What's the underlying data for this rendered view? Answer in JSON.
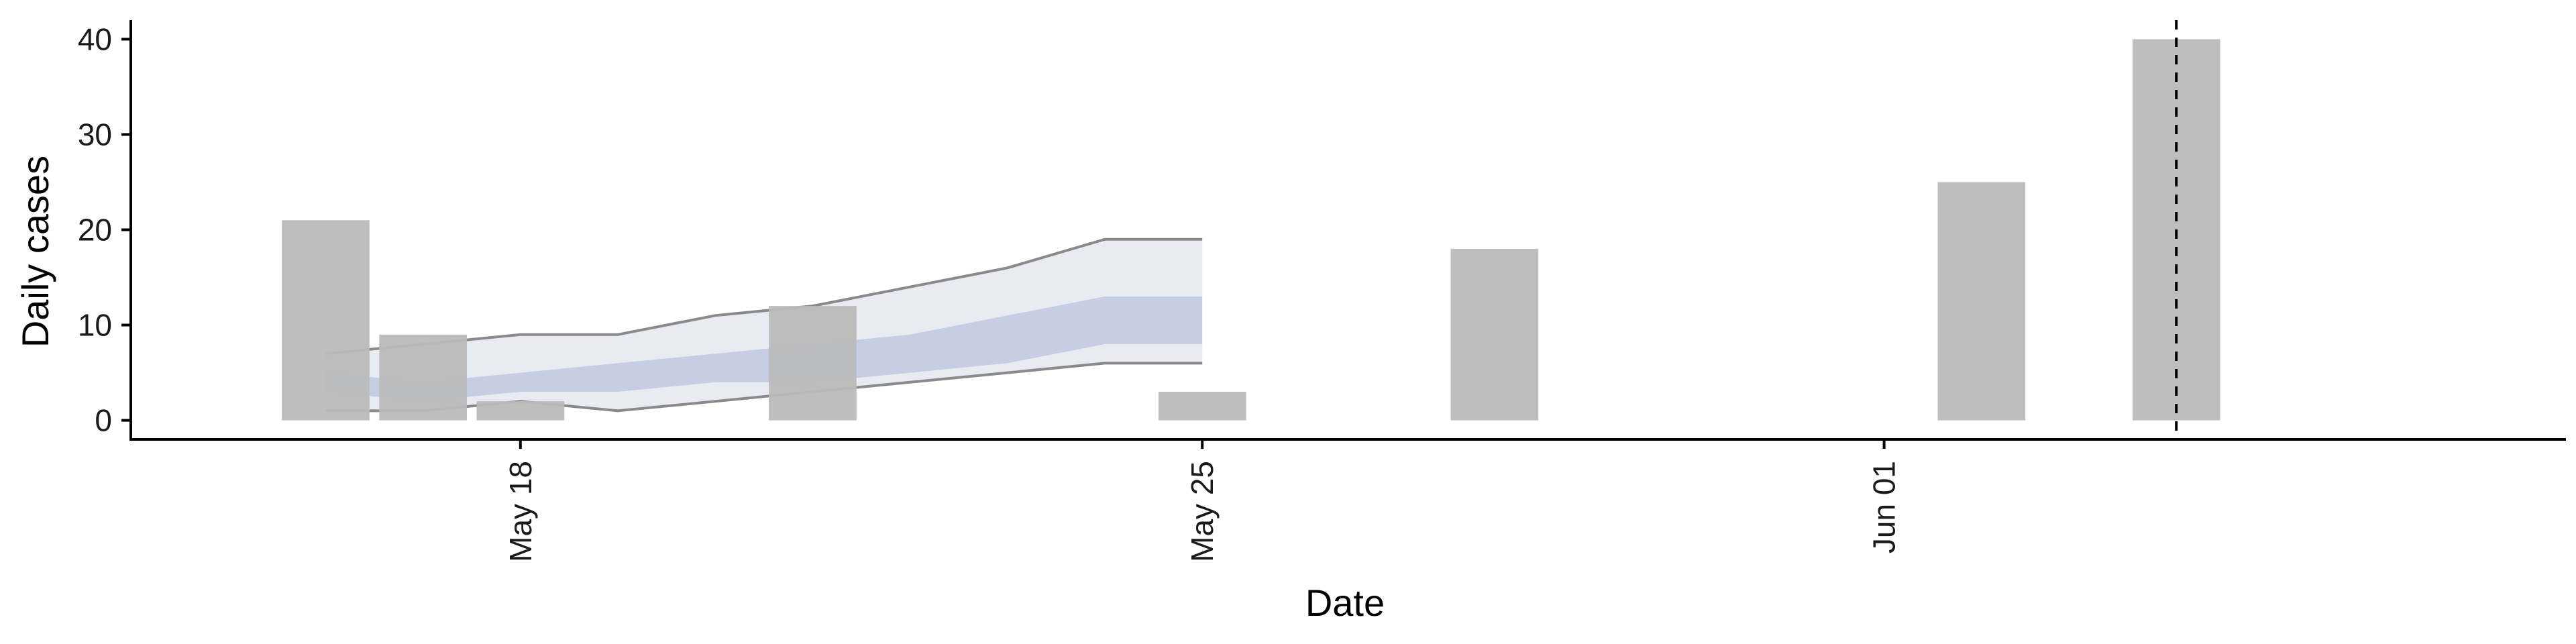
{
  "chart_data": {
    "type": "bar",
    "xlabel": "Date",
    "ylabel": "Daily cases",
    "ylim": [
      -2,
      42
    ],
    "xlim": [
      "2025-05-14",
      "2025-06-08"
    ],
    "yticks": [
      0,
      10,
      20,
      30,
      40
    ],
    "xticks": [
      {
        "date": "2025-05-18",
        "label": "May 18"
      },
      {
        "date": "2025-05-25",
        "label": "May 25"
      },
      {
        "date": "2025-06-01",
        "label": "Jun 01"
      }
    ],
    "bars": {
      "color": "#bababa",
      "dates": [
        "2025-05-16",
        "2025-05-17",
        "2025-05-18",
        "2025-05-21",
        "2025-05-25",
        "2025-05-28",
        "2025-06-02",
        "2025-06-04"
      ],
      "values": [
        21,
        9,
        2,
        12,
        3,
        18,
        25,
        40
      ]
    },
    "forecast": {
      "dates": [
        "2025-05-16",
        "2025-05-17",
        "2025-05-18",
        "2025-05-19",
        "2025-05-20",
        "2025-05-21",
        "2025-05-22",
        "2025-05-23",
        "2025-05-24",
        "2025-05-25"
      ],
      "outer_upper": [
        7,
        8,
        9,
        9,
        11,
        12,
        14,
        16,
        19,
        19
      ],
      "outer_lower": [
        1,
        1,
        2,
        1,
        2,
        3,
        4,
        5,
        6,
        6
      ],
      "inner_upper": [
        5,
        4,
        5,
        6,
        7,
        8,
        9,
        11,
        13,
        13
      ],
      "inner_lower": [
        3,
        2,
        3,
        3,
        4,
        4,
        5,
        6,
        8,
        8
      ],
      "outer_color": "#e9ebf3",
      "inner_color": "#c7cde2",
      "line_color": "#8a8a8a"
    },
    "vline": {
      "date": "2025-06-04",
      "style": "dashed",
      "color": "#000000"
    },
    "grid": false,
    "legend": "none"
  }
}
